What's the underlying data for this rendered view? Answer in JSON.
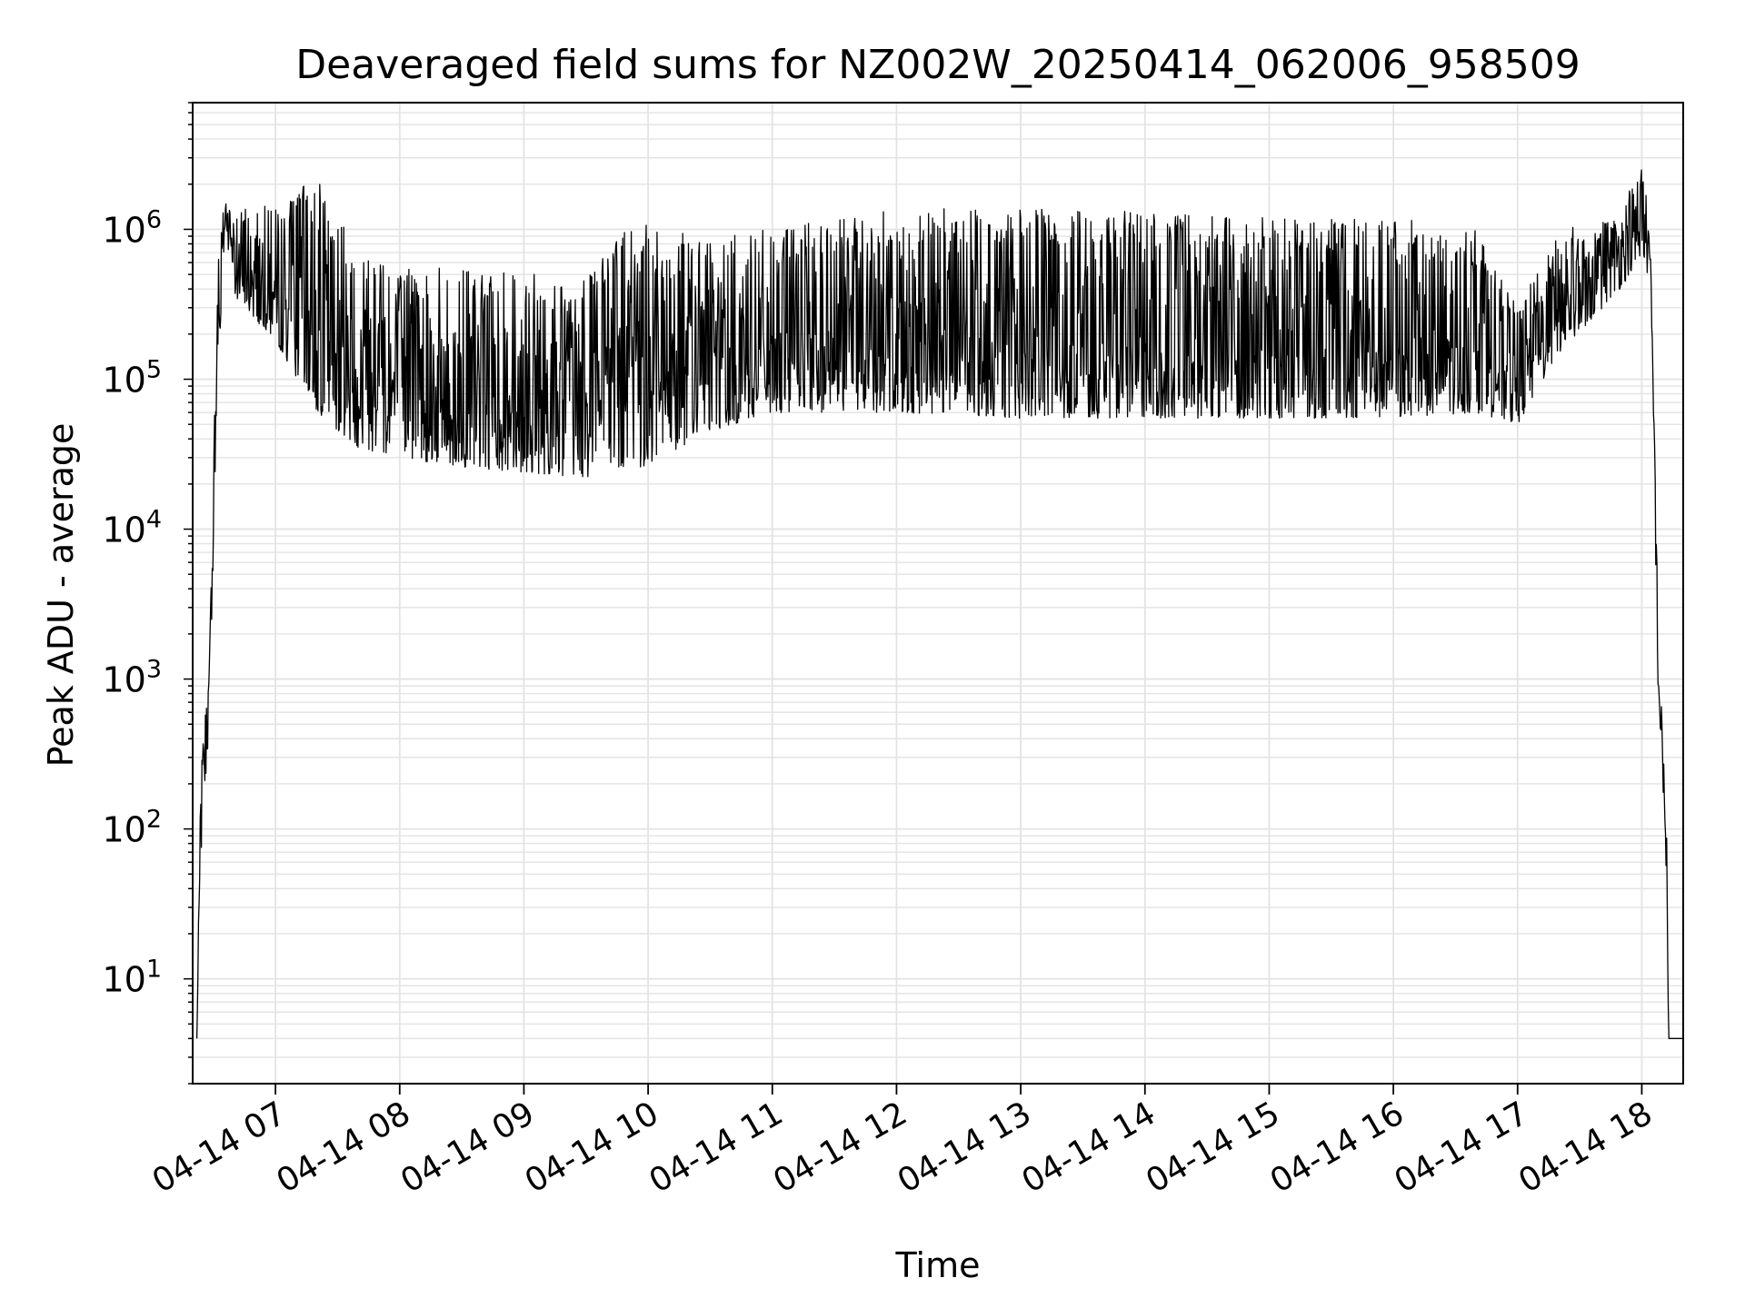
{
  "chart_data": {
    "type": "line",
    "title": "Deaveraged field sums for NZ002W_20250414_062006_958509",
    "xlabel": "Time",
    "ylabel": "Peak ADU - average",
    "x_range": [
      "2025-04-14 06:20",
      "2025-04-14 18:20"
    ],
    "ylim": [
      2,
      7000000
    ],
    "y_scale": "log",
    "grid": true,
    "x_ticks": [
      {
        "value": "2025-04-14 07:00",
        "label": "04-14 07"
      },
      {
        "value": "2025-04-14 08:00",
        "label": "04-14 08"
      },
      {
        "value": "2025-04-14 09:00",
        "label": "04-14 09"
      },
      {
        "value": "2025-04-14 10:00",
        "label": "04-14 10"
      },
      {
        "value": "2025-04-14 11:00",
        "label": "04-14 11"
      },
      {
        "value": "2025-04-14 12:00",
        "label": "04-14 12"
      },
      {
        "value": "2025-04-14 13:00",
        "label": "04-14 13"
      },
      {
        "value": "2025-04-14 14:00",
        "label": "04-14 14"
      },
      {
        "value": "2025-04-14 15:00",
        "label": "04-14 15"
      },
      {
        "value": "2025-04-14 16:00",
        "label": "04-14 16"
      },
      {
        "value": "2025-04-14 17:00",
        "label": "04-14 17"
      },
      {
        "value": "2025-04-14 18:00",
        "label": "04-14 18"
      }
    ],
    "y_ticks": [
      {
        "value": 10,
        "base": "10",
        "exp": "1"
      },
      {
        "value": 100,
        "base": "10",
        "exp": "2"
      },
      {
        "value": 1000,
        "base": "10",
        "exp": "3"
      },
      {
        "value": 10000,
        "base": "10",
        "exp": "4"
      },
      {
        "value": 100000,
        "base": "10",
        "exp": "5"
      },
      {
        "value": 1000000,
        "base": "10",
        "exp": "6"
      }
    ],
    "line_color": "#000000",
    "envelope": {
      "description_points": [
        {
          "x": "2025-04-14 06:22",
          "low": 4,
          "high": 4
        },
        {
          "x": "2025-04-14 06:24",
          "low": 60,
          "high": 300
        },
        {
          "x": "2025-04-14 06:28",
          "low": 500,
          "high": 1300
        },
        {
          "x": "2025-04-14 06:32",
          "low": 100000,
          "high": 800000
        },
        {
          "x": "2025-04-14 06:36",
          "low": 1000000,
          "high": 1800000
        },
        {
          "x": "2025-04-14 06:40",
          "low": 350000,
          "high": 1500000
        },
        {
          "x": "2025-04-14 07:00",
          "low": 180000,
          "high": 1400000
        },
        {
          "x": "2025-04-14 07:20",
          "low": 60000,
          "high": 2300000
        },
        {
          "x": "2025-04-14 07:40",
          "low": 35000,
          "high": 700000
        },
        {
          "x": "2025-04-14 08:00",
          "low": 30000,
          "high": 600000
        },
        {
          "x": "2025-04-14 08:30",
          "low": 26000,
          "high": 550000
        },
        {
          "x": "2025-04-14 09:00",
          "low": 24000,
          "high": 500000
        },
        {
          "x": "2025-04-14 09:30",
          "low": 22000,
          "high": 500000
        },
        {
          "x": "2025-04-14 09:55",
          "low": 25000,
          "high": 1200000
        },
        {
          "x": "2025-04-14 10:30",
          "low": 45000,
          "high": 900000
        },
        {
          "x": "2025-04-14 11:00",
          "low": 60000,
          "high": 1000000
        },
        {
          "x": "2025-04-14 12:00",
          "low": 60000,
          "high": 1400000
        },
        {
          "x": "2025-04-14 13:00",
          "low": 55000,
          "high": 1400000
        },
        {
          "x": "2025-04-14 14:00",
          "low": 55000,
          "high": 1300000
        },
        {
          "x": "2025-04-14 15:00",
          "low": 55000,
          "high": 1200000
        },
        {
          "x": "2025-04-14 16:00",
          "low": 55000,
          "high": 1200000
        },
        {
          "x": "2025-04-14 16:40",
          "low": 60000,
          "high": 1000000
        },
        {
          "x": "2025-04-14 17:00",
          "low": 50000,
          "high": 300000
        },
        {
          "x": "2025-04-14 17:20",
          "low": 150000,
          "high": 1000000
        },
        {
          "x": "2025-04-14 17:50",
          "low": 400000,
          "high": 1300000
        },
        {
          "x": "2025-04-14 18:00",
          "low": 700000,
          "high": 3500000
        },
        {
          "x": "2025-04-14 18:04",
          "low": 400000,
          "high": 900000
        },
        {
          "x": "2025-04-14 18:06",
          "low": 20000,
          "high": 80000
        },
        {
          "x": "2025-04-14 18:08",
          "low": 600,
          "high": 1700
        },
        {
          "x": "2025-04-14 18:10",
          "low": 200,
          "high": 500
        },
        {
          "x": "2025-04-14 18:12",
          "low": 40,
          "high": 100
        },
        {
          "x": "2025-04-14 18:13",
          "low": 4,
          "high": 4
        },
        {
          "x": "2025-04-14 18:20",
          "low": 4,
          "high": 4
        }
      ]
    }
  }
}
